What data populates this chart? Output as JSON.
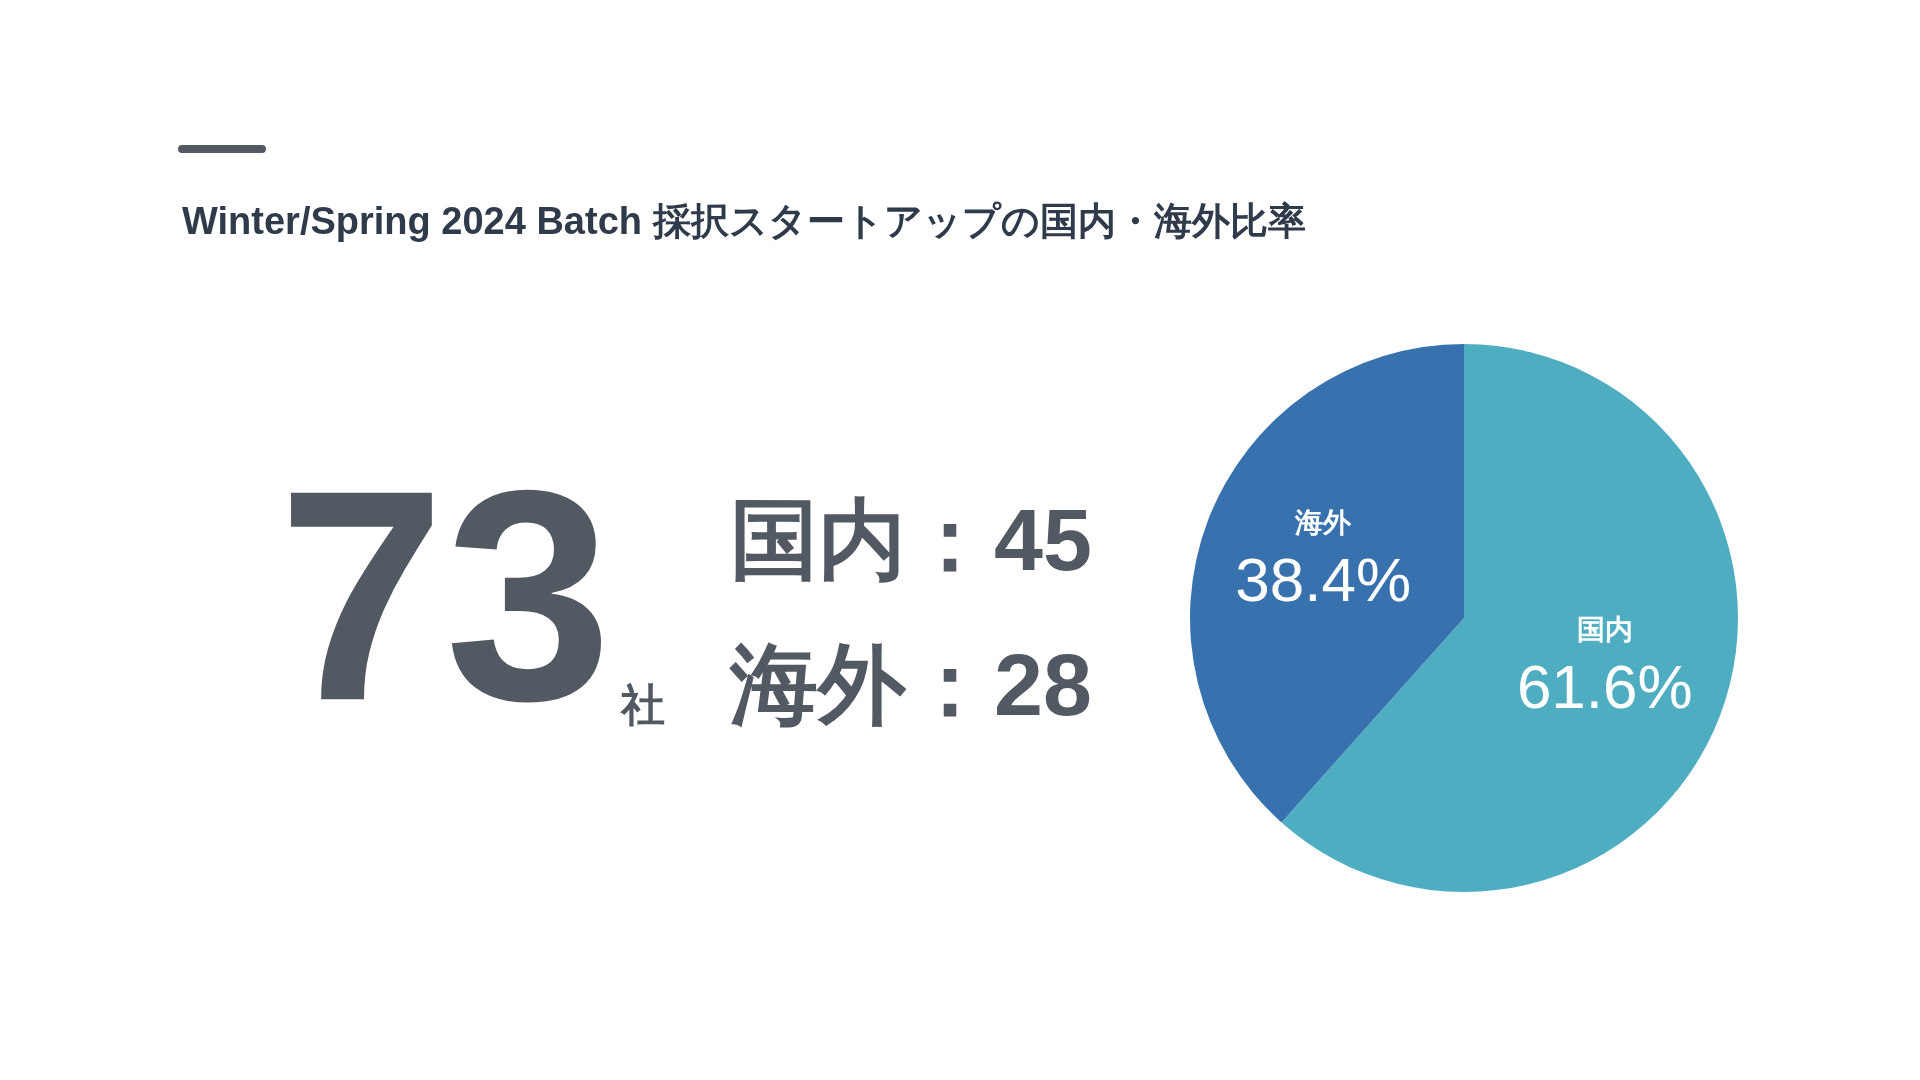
{
  "chart_data": {
    "type": "pie",
    "title": "Winter/Spring 2024 Batch 採択スタートアップの国内・海外比率",
    "categories": [
      "国内",
      "海外"
    ],
    "values": [
      61.6,
      38.4
    ],
    "colors": [
      "#4fadc2",
      "#3872ae"
    ],
    "value_labels": [
      "61.6%",
      "38.4%"
    ],
    "annotations": [
      "73",
      "社",
      "国内：45",
      "海外：28"
    ]
  }
}
